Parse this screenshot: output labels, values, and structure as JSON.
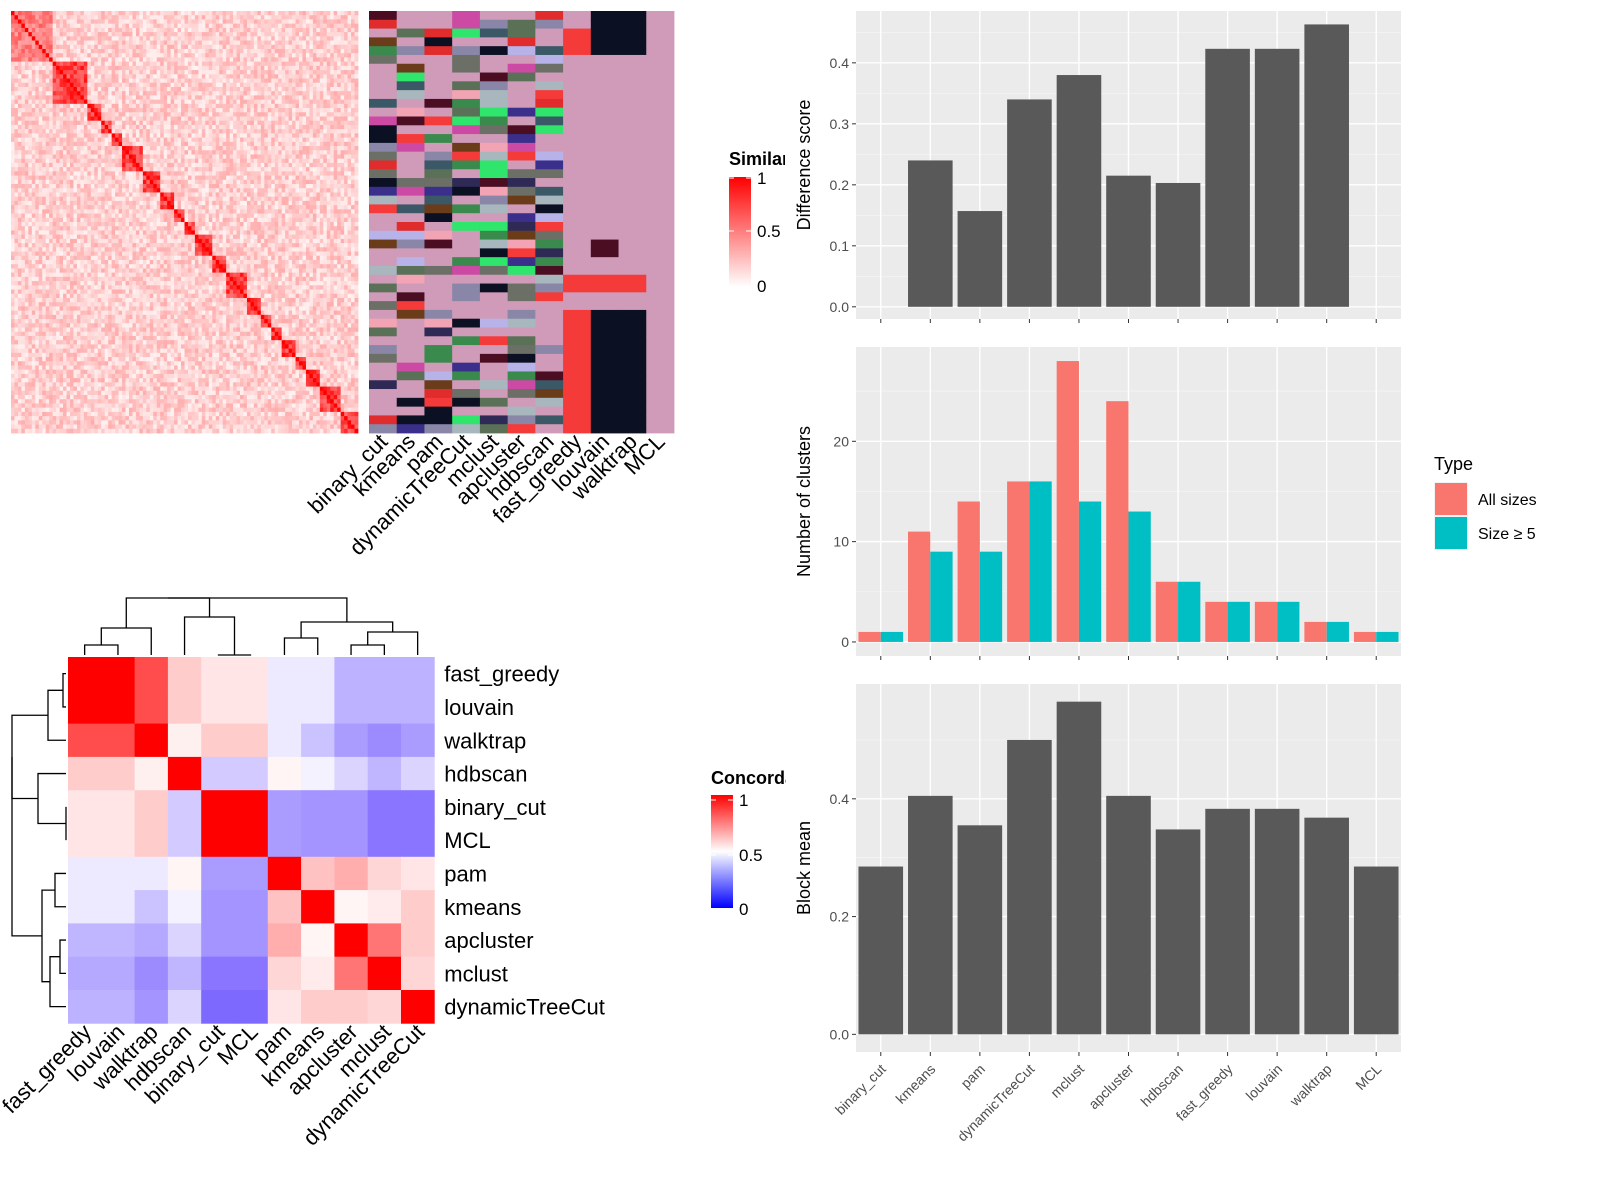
{
  "chart_data": [
    {
      "type": "heatmap",
      "panel": "top-left",
      "legend": {
        "title": "Similarity",
        "ticks": [
          "1",
          "0.5",
          "0"
        ],
        "colors": [
          "#ff0000",
          "#ffffff"
        ]
      },
      "annotation_columns": [
        "binary_cut",
        "kmeans",
        "pam",
        "dynamicTreeCut",
        "mclust",
        "apcluster",
        "hdbscan",
        "fast_greedy",
        "louvain",
        "walktrap",
        "MCL"
      ]
    },
    {
      "type": "heatmap",
      "panel": "bottom-left",
      "legend": {
        "title": "Concordance",
        "ticks": [
          "1",
          "0.5",
          "0"
        ],
        "colors": [
          "#ff0000",
          "#ffffff",
          "#0000ff"
        ]
      },
      "rows": [
        "fast_greedy",
        "louvain",
        "walktrap",
        "hdbscan",
        "binary_cut",
        "MCL",
        "pam",
        "kmeans",
        "apcluster",
        "mclust",
        "dynamicTreeCut"
      ],
      "columns": [
        "fast_greedy",
        "louvain",
        "walktrap",
        "hdbscan",
        "binary_cut",
        "MCL",
        "pam",
        "kmeans",
        "apcluster",
        "mclust",
        "dynamicTreeCut"
      ],
      "values": [
        [
          1.0,
          1.0,
          0.85,
          0.6,
          0.55,
          0.55,
          0.45,
          0.45,
          0.32,
          0.32,
          0.32
        ],
        [
          1.0,
          1.0,
          0.85,
          0.6,
          0.55,
          0.55,
          0.45,
          0.45,
          0.32,
          0.32,
          0.32
        ],
        [
          0.85,
          0.85,
          1.0,
          0.53,
          0.6,
          0.6,
          0.45,
          0.36,
          0.27,
          0.23,
          0.27
        ],
        [
          0.6,
          0.6,
          0.53,
          1.0,
          0.38,
          0.38,
          0.52,
          0.47,
          0.4,
          0.33,
          0.4
        ],
        [
          0.55,
          0.55,
          0.6,
          0.38,
          1.0,
          1.0,
          0.27,
          0.25,
          0.25,
          0.18,
          0.18
        ],
        [
          0.55,
          0.55,
          0.6,
          0.38,
          1.0,
          1.0,
          0.27,
          0.25,
          0.25,
          0.18,
          0.18
        ],
        [
          0.45,
          0.45,
          0.45,
          0.52,
          0.27,
          0.27,
          1.0,
          0.62,
          0.66,
          0.58,
          0.55
        ],
        [
          0.45,
          0.45,
          0.36,
          0.47,
          0.25,
          0.25,
          0.62,
          1.0,
          0.52,
          0.54,
          0.6
        ],
        [
          0.33,
          0.33,
          0.3,
          0.4,
          0.25,
          0.25,
          0.66,
          0.52,
          1.0,
          0.77,
          0.6
        ],
        [
          0.3,
          0.3,
          0.23,
          0.33,
          0.18,
          0.18,
          0.58,
          0.54,
          0.77,
          1.0,
          0.58
        ],
        [
          0.32,
          0.32,
          0.25,
          0.4,
          0.15,
          0.15,
          0.55,
          0.6,
          0.6,
          0.58,
          1.0
        ]
      ]
    },
    {
      "type": "bar",
      "panel": "top-right",
      "categories": [
        "binary_cut",
        "kmeans",
        "pam",
        "dynamicTreeCut",
        "mclust",
        "apcluster",
        "hdbscan",
        "fast_greedy",
        "louvain",
        "walktrap",
        "MCL"
      ],
      "values": [
        0,
        0.24,
        0.157,
        0.34,
        0.38,
        0.215,
        0.203,
        0.423,
        0.423,
        0.463,
        0
      ],
      "ylabel": "Difference score",
      "ylim": [
        -0.02,
        0.485
      ],
      "yticks": [
        "0.0",
        "0.1",
        "0.2",
        "0.3",
        "0.4"
      ],
      "bar_color": "#595959"
    },
    {
      "type": "bar",
      "panel": "middle-right",
      "categories": [
        "binary_cut",
        "kmeans",
        "pam",
        "dynamicTreeCut",
        "mclust",
        "apcluster",
        "hdbscan",
        "fast_greedy",
        "louvain",
        "walktrap",
        "MCL"
      ],
      "series": [
        {
          "name": "All sizes",
          "color": "#f8766d",
          "values": [
            1,
            11,
            14,
            16,
            28,
            24,
            6,
            4,
            4,
            2,
            1
          ]
        },
        {
          "name": "Size ≥ 5",
          "color": "#00bfc4",
          "values": [
            1,
            9,
            9,
            16,
            14,
            13,
            6,
            4,
            4,
            2,
            1
          ]
        }
      ],
      "ylabel": "Number of clusters",
      "ylim": [
        -1.4,
        29.4
      ],
      "yticks": [
        "0",
        "10",
        "20"
      ],
      "legend": {
        "title": "Type",
        "position": "right"
      }
    },
    {
      "type": "bar",
      "panel": "bottom-right",
      "categories": [
        "binary_cut",
        "kmeans",
        "pam",
        "dynamicTreeCut",
        "mclust",
        "apcluster",
        "hdbscan",
        "fast_greedy",
        "louvain",
        "walktrap",
        "MCL"
      ],
      "values": [
        0.285,
        0.405,
        0.355,
        0.5,
        0.565,
        0.405,
        0.348,
        0.383,
        0.383,
        0.368,
        0.285
      ],
      "ylabel": "Block mean",
      "ylim": [
        -0.03,
        0.595
      ],
      "yticks": [
        "0.0",
        "0.2",
        "0.4"
      ],
      "bar_color": "#595959"
    }
  ]
}
